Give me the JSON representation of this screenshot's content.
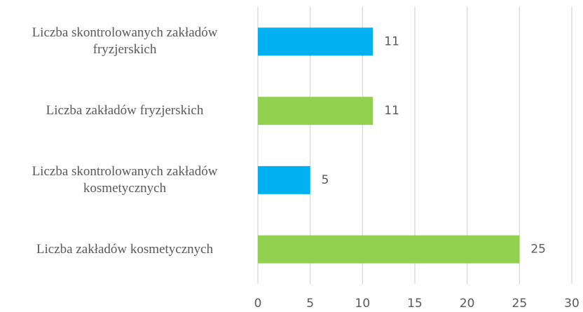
{
  "chart_data": {
    "type": "hbar",
    "categories": [
      "Liczba skontrolowanych zakładów fryzjerskich",
      "Liczba zakładów fryzjerskich",
      "Liczba skontrolowanych zakładów kosmetycznych",
      "Liczba zakładów kosmetycznych"
    ],
    "values": [
      11,
      11,
      5,
      25
    ],
    "colors": [
      "#00b0f0",
      "#92d050",
      "#00b0f0",
      "#92d050"
    ],
    "xlim": [
      0,
      30
    ],
    "xticks": [
      0,
      5,
      10,
      15,
      20,
      25,
      30
    ],
    "grid": true
  }
}
